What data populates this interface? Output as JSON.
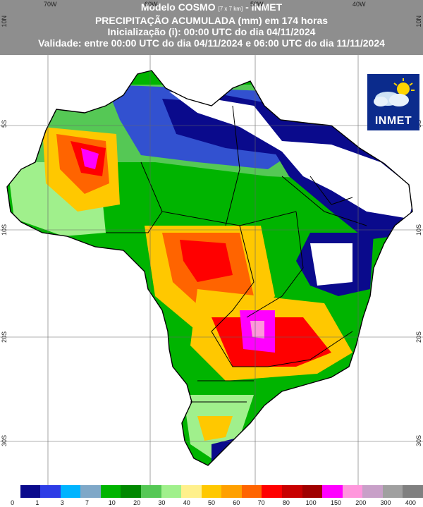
{
  "header": {
    "title_main": "Modelo COSMO",
    "title_res": "[7 x 7 km]",
    "title_suffix": "- INMET",
    "subtitle": "PRECIPITAÇÃO ACUMULADA (mm) em 174 horas",
    "init": "Inicialização (i): 00:00 UTC do dia 04/11/2024",
    "validity": "Validade: entre 00:00 UTC do dia 04/11/2024 e 06:00 UTC do dia 11/11/2024"
  },
  "grid": {
    "lon_labels": [
      "70W",
      "60W",
      "50W",
      "40W"
    ],
    "lat_labels": [
      "10N",
      "5S",
      "10S",
      "20S",
      "30S"
    ],
    "lat_labels_right": [
      "10N",
      "5S",
      "10S",
      "20S",
      "30S"
    ]
  },
  "logo": {
    "text": "INMET",
    "icon": "sun-cloud-icon"
  },
  "colorbar": {
    "colors": [
      "#ffffff",
      "#0a0a8c",
      "#2d3ce6",
      "#00b4ff",
      "#7fa8c8",
      "#00b400",
      "#008800",
      "#55c855",
      "#a0f08c",
      "#fff08c",
      "#ffc800",
      "#ffa000",
      "#ff6400",
      "#ff0000",
      "#c80000",
      "#a00000",
      "#ff00ff",
      "#ff96dc",
      "#c8a0c8",
      "#a0a0a0",
      "#808080"
    ],
    "labels": [
      "0",
      "1",
      "3",
      "7",
      "10",
      "20",
      "30",
      "40",
      "50",
      "60",
      "70",
      "80",
      "100",
      "150",
      "200",
      "300",
      "400"
    ]
  },
  "legend_colors": {
    "white": "#ffffff",
    "deep_blue": "#0a0a8c",
    "green": "#008800",
    "yellow": "#fff08c",
    "red": "#ff0000",
    "magenta": "#ff00ff"
  }
}
